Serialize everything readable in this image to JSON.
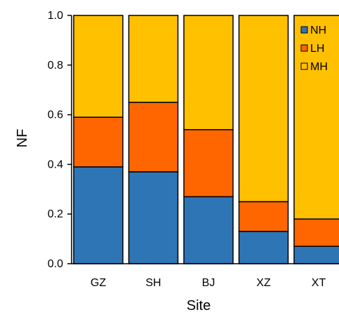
{
  "chart_data": {
    "type": "bar",
    "stacked": true,
    "categories": [
      "GZ",
      "SH",
      "BJ",
      "XZ",
      "XT"
    ],
    "series": [
      {
        "name": "NH",
        "color": "#2e75b6",
        "values": [
          0.39,
          0.37,
          0.27,
          0.13,
          0.07
        ]
      },
      {
        "name": "LH",
        "color": "#ff6600",
        "values": [
          0.2,
          0.28,
          0.27,
          0.12,
          0.11
        ]
      },
      {
        "name": "MH",
        "color": "#ffc000",
        "values": [
          0.41,
          0.35,
          0.46,
          0.75,
          0.82
        ]
      }
    ],
    "xlabel": "Site",
    "ylabel": "NF",
    "ylim": [
      0,
      1.0
    ],
    "yticks": [
      "0.0",
      "0.2",
      "0.4",
      "0.6",
      "0.8",
      "1.0"
    ],
    "legend": {
      "position": "top-right",
      "entries": [
        "NH",
        "LH",
        "MH"
      ]
    },
    "grid": false
  }
}
